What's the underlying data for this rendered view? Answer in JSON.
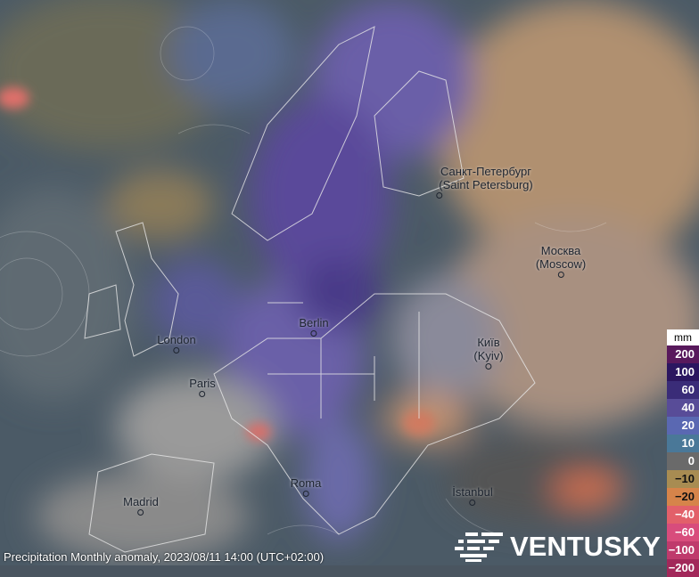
{
  "layer": {
    "name": "Precipitation Monthly anomaly",
    "datetime": "2023/08/11 14:00",
    "timezone": "(UTC+02:00)",
    "caption": "Precipitation Monthly anomaly, 2023/08/11 14:00 (UTC+02:00)"
  },
  "cities": [
    {
      "name": "Санкт-Петербург",
      "alt": "(Saint Petersburg)"
    },
    {
      "name": "Москва",
      "alt": "(Moscow)"
    },
    {
      "name": "Berlin",
      "alt": ""
    },
    {
      "name": "London",
      "alt": ""
    },
    {
      "name": "Paris",
      "alt": ""
    },
    {
      "name": "Київ",
      "alt": "(Kyiv)"
    },
    {
      "name": "Roma",
      "alt": ""
    },
    {
      "name": "Madrid",
      "alt": ""
    },
    {
      "name": "İstanbul",
      "alt": ""
    }
  ],
  "legend": {
    "unit": "mm",
    "items": [
      {
        "label": "200",
        "color": "#58195c"
      },
      {
        "label": "100",
        "color": "#2b1660"
      },
      {
        "label": "60",
        "color": "#3a2c78"
      },
      {
        "label": "40",
        "color": "#584c98"
      },
      {
        "label": "20",
        "color": "#5a68b2"
      },
      {
        "label": "10",
        "color": "#4a7898"
      },
      {
        "label": "0",
        "color": "#6a6a6a"
      },
      {
        "label": "−10",
        "color": "#a88c52"
      },
      {
        "label": "−20",
        "color": "#d6844a"
      },
      {
        "label": "−40",
        "color": "#e2606a"
      },
      {
        "label": "−60",
        "color": "#d84c7c"
      },
      {
        "label": "−100",
        "color": "#bf3a6c"
      },
      {
        "label": "−200",
        "color": "#a2285a"
      }
    ]
  },
  "logo": "VENTUSKY"
}
